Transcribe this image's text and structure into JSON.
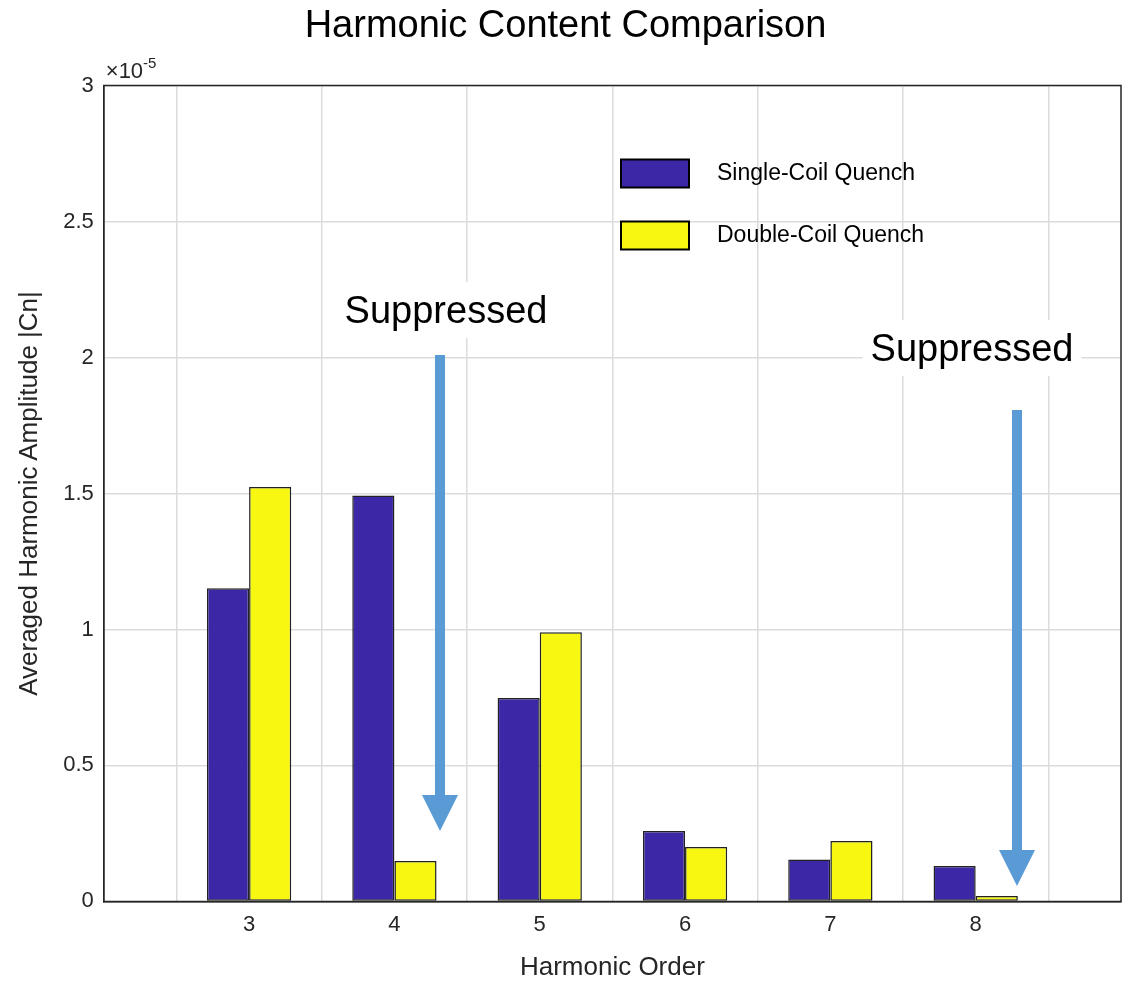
{
  "chart_data": {
    "type": "bar",
    "title": "Harmonic Content Comparison",
    "xlabel": "Harmonic Order",
    "ylabel": "Averaged Harmonic Amplitude |Cn|",
    "x": [
      3,
      4,
      5,
      6,
      7,
      8
    ],
    "series": [
      {
        "name": "Single-Coil Quench",
        "color": "#3c28a6",
        "values": [
          1.152,
          1.493,
          0.748,
          0.259,
          0.154,
          0.13
        ]
      },
      {
        "name": "Double-Coil Quench",
        "color": "#f7f712",
        "values": [
          1.524,
          0.149,
          0.99,
          0.2,
          0.222,
          0.02
        ]
      }
    ],
    "xlim": [
      2,
      9
    ],
    "xticks": [
      3,
      4,
      5,
      6,
      7,
      8
    ],
    "ylim": [
      0,
      3
    ],
    "yticks": [
      0,
      0.5,
      1,
      1.5,
      2,
      2.5,
      3
    ],
    "grid": true,
    "legend": "top right",
    "annotations": [
      "×10$^{-5}$",
      "Suppressed",
      "Suppressed"
    ]
  }
}
